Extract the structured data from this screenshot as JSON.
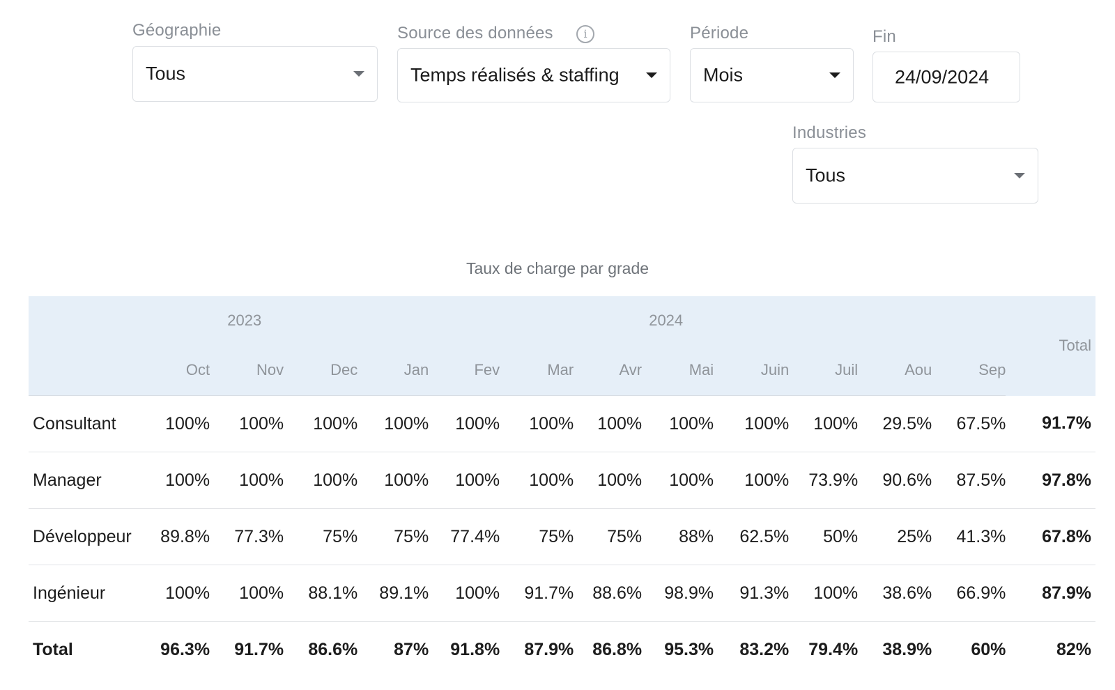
{
  "filters": {
    "geographie": {
      "label": "Géographie",
      "value": "Tous"
    },
    "source": {
      "label": "Source des données",
      "value": "Temps réalisés & staffing",
      "info_icon": "info-icon"
    },
    "periode": {
      "label": "Période",
      "value": "Mois"
    },
    "fin": {
      "label": "Fin",
      "value": "24/09/2024"
    },
    "industries": {
      "label": "Industries",
      "value": "Tous"
    }
  },
  "table": {
    "title": "Taux de charge par grade",
    "years": [
      "2023",
      "2024"
    ],
    "months": [
      "Oct",
      "Nov",
      "Dec",
      "Jan",
      "Fev",
      "Mar",
      "Avr",
      "Mai",
      "Juin",
      "Juil",
      "Aou",
      "Sep"
    ],
    "total_header": "Total",
    "rows": [
      {
        "grade": "Consultant",
        "values": [
          "100%",
          "100%",
          "100%",
          "100%",
          "100%",
          "100%",
          "100%",
          "100%",
          "100%",
          "100%",
          "29.5%",
          "67.5%"
        ],
        "total": "91.7%"
      },
      {
        "grade": "Manager",
        "values": [
          "100%",
          "100%",
          "100%",
          "100%",
          "100%",
          "100%",
          "100%",
          "100%",
          "100%",
          "73.9%",
          "90.6%",
          "87.5%"
        ],
        "total": "97.8%"
      },
      {
        "grade": "Développeur",
        "values": [
          "89.8%",
          "77.3%",
          "75%",
          "75%",
          "77.4%",
          "75%",
          "75%",
          "88%",
          "62.5%",
          "50%",
          "25%",
          "41.3%"
        ],
        "total": "67.8%"
      },
      {
        "grade": "Ingénieur",
        "values": [
          "100%",
          "100%",
          "88.1%",
          "89.1%",
          "100%",
          "91.7%",
          "88.6%",
          "98.9%",
          "91.3%",
          "100%",
          "38.6%",
          "66.9%"
        ],
        "total": "87.9%"
      }
    ],
    "total_row": {
      "label": "Total",
      "values": [
        "96.3%",
        "91.7%",
        "86.6%",
        "87%",
        "91.8%",
        "87.9%",
        "86.8%",
        "95.3%",
        "83.2%",
        "79.4%",
        "38.9%",
        "60%"
      ],
      "total": "82%"
    }
  }
}
